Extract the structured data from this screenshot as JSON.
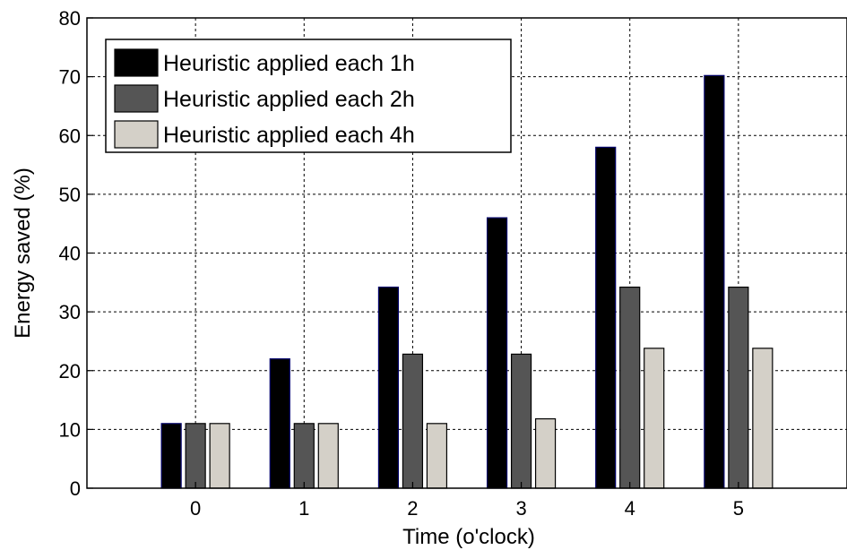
{
  "chart_data": {
    "type": "bar",
    "xlabel": "Time (o'clock)",
    "ylabel": "Energy saved (%)",
    "categories": [
      "0",
      "1",
      "2",
      "3",
      "4",
      "5"
    ],
    "x_ticks": [
      "0",
      "1",
      "2",
      "3",
      "4",
      "5"
    ],
    "y_ticks": [
      "0",
      "10",
      "20",
      "30",
      "40",
      "50",
      "60",
      "70",
      "80"
    ],
    "ylim": [
      0,
      80
    ],
    "xlim": [
      -1,
      6
    ],
    "grid": true,
    "legend_position": "top-left",
    "series": [
      {
        "name": "Heuristic applied each 1h",
        "color": "#000000",
        "values": [
          11,
          22,
          34.2,
          46,
          58,
          70.2
        ]
      },
      {
        "name": "Heuristic applied each 2h",
        "color": "#555555",
        "values": [
          11,
          11,
          22.8,
          22.8,
          34.2,
          34.2
        ]
      },
      {
        "name": "Heuristic applied each 4h",
        "color": "#d4d0c8",
        "values": [
          11,
          11,
          11,
          11.8,
          23.8,
          23.8
        ]
      }
    ]
  }
}
